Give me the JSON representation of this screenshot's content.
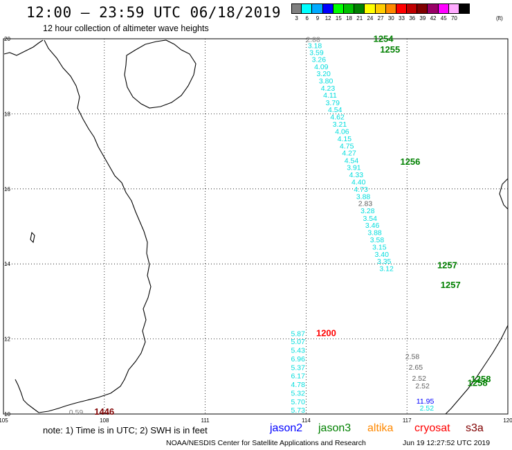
{
  "header": {
    "title": "12:00 – 23:59 UTC 06/18/2019",
    "subtitle": "12 hour collection of altimeter wave heights"
  },
  "legend": {
    "unit": "(ft)",
    "bins": [
      {
        "label": "3",
        "color": "#808080"
      },
      {
        "label": "6",
        "color": "#00ffff"
      },
      {
        "label": "9",
        "color": "#00aaff"
      },
      {
        "label": "12",
        "color": "#0000ff"
      },
      {
        "label": "15",
        "color": "#00ff00"
      },
      {
        "label": "18",
        "color": "#00c000"
      },
      {
        "label": "21",
        "color": "#008000"
      },
      {
        "label": "24",
        "color": "#ffff00"
      },
      {
        "label": "27",
        "color": "#ffcc00"
      },
      {
        "label": "30",
        "color": "#ff8800"
      },
      {
        "label": "33",
        "color": "#ff0000"
      },
      {
        "label": "36",
        "color": "#c00000"
      },
      {
        "label": "39",
        "color": "#800000"
      },
      {
        "label": "42",
        "color": "#990066"
      },
      {
        "label": "45",
        "color": "#ff00ff"
      },
      {
        "label": "70",
        "color": "#ffaaff"
      },
      {
        "label": "",
        "color": "#000000"
      }
    ]
  },
  "map": {
    "lon_labels": [
      "105",
      "108",
      "111",
      "114",
      "117",
      "120"
    ],
    "lat_labels": [
      "20",
      "18",
      "16",
      "14",
      "12",
      "10"
    ],
    "time_labels": [
      {
        "text": "1254",
        "color": "#008000",
        "lon": 116.0,
        "lat": 19.92
      },
      {
        "text": "1255",
        "color": "#008000",
        "lon": 116.2,
        "lat": 19.63
      },
      {
        "text": "1256",
        "color": "#008000",
        "lon": 116.8,
        "lat": 16.64
      },
      {
        "text": "1257",
        "color": "#008000",
        "lon": 117.9,
        "lat": 13.88
      },
      {
        "text": "1257",
        "color": "#008000",
        "lon": 118.0,
        "lat": 13.36
      },
      {
        "text": "1200",
        "color": "#ff0000",
        "lon": 114.3,
        "lat": 12.08
      },
      {
        "text": "1258",
        "color": "#008000",
        "lon": 118.9,
        "lat": 10.85
      },
      {
        "text": "1258",
        "color": "#008000",
        "lon": 118.8,
        "lat": 10.75
      },
      {
        "text": "1446",
        "color": "#800000",
        "lon": 107.7,
        "lat": 9.98
      }
    ],
    "swh_obs": [
      {
        "text": "2.88",
        "color": "#808080",
        "lon": 114.0,
        "lat": 19.92
      },
      {
        "text": "3.18",
        "color": "#00dddd",
        "lon": 114.05,
        "lat": 19.75
      },
      {
        "text": "3.59",
        "color": "#00dddd",
        "lon": 114.1,
        "lat": 19.57
      },
      {
        "text": "3.26",
        "color": "#00dddd",
        "lon": 114.17,
        "lat": 19.38
      },
      {
        "text": "4.09",
        "color": "#00dddd",
        "lon": 114.24,
        "lat": 19.19
      },
      {
        "text": "3.20",
        "color": "#00dddd",
        "lon": 114.31,
        "lat": 19.0
      },
      {
        "text": "3.80",
        "color": "#00dddd",
        "lon": 114.38,
        "lat": 18.81
      },
      {
        "text": "4.23",
        "color": "#00dddd",
        "lon": 114.44,
        "lat": 18.62
      },
      {
        "text": "4.11",
        "color": "#00dddd",
        "lon": 114.51,
        "lat": 18.43
      },
      {
        "text": "3.79",
        "color": "#00dddd",
        "lon": 114.58,
        "lat": 18.23
      },
      {
        "text": "4.54",
        "color": "#00dddd",
        "lon": 114.65,
        "lat": 18.04
      },
      {
        "text": "4.62",
        "color": "#00dddd",
        "lon": 114.72,
        "lat": 17.85
      },
      {
        "text": "3.21",
        "color": "#00dddd",
        "lon": 114.79,
        "lat": 17.66
      },
      {
        "text": "4.06",
        "color": "#00dddd",
        "lon": 114.86,
        "lat": 17.46
      },
      {
        "text": "4.15",
        "color": "#00dddd",
        "lon": 114.93,
        "lat": 17.27
      },
      {
        "text": "4.75",
        "color": "#00dddd",
        "lon": 115.0,
        "lat": 17.08
      },
      {
        "text": "4.27",
        "color": "#00dddd",
        "lon": 115.07,
        "lat": 16.89
      },
      {
        "text": "4.54",
        "color": "#00dddd",
        "lon": 115.14,
        "lat": 16.69
      },
      {
        "text": "3.91",
        "color": "#00dddd",
        "lon": 115.21,
        "lat": 16.5
      },
      {
        "text": "4.33",
        "color": "#00dddd",
        "lon": 115.28,
        "lat": 16.31
      },
      {
        "text": "4.40",
        "color": "#00dddd",
        "lon": 115.35,
        "lat": 16.12
      },
      {
        "text": "4.73",
        "color": "#00dddd",
        "lon": 115.42,
        "lat": 15.92
      },
      {
        "text": "3.88",
        "color": "#00dddd",
        "lon": 115.49,
        "lat": 15.73
      },
      {
        "text": "2.83",
        "color": "#606060",
        "lon": 115.55,
        "lat": 15.54
      },
      {
        "text": "3.28",
        "color": "#00dddd",
        "lon": 115.62,
        "lat": 15.35
      },
      {
        "text": "3.54",
        "color": "#00dddd",
        "lon": 115.69,
        "lat": 15.15
      },
      {
        "text": "3.46",
        "color": "#00dddd",
        "lon": 115.76,
        "lat": 14.96
      },
      {
        "text": "3.88",
        "color": "#00dddd",
        "lon": 115.83,
        "lat": 14.77
      },
      {
        "text": "3.58",
        "color": "#00dddd",
        "lon": 115.9,
        "lat": 14.58
      },
      {
        "text": "3.15",
        "color": "#00dddd",
        "lon": 115.97,
        "lat": 14.38
      },
      {
        "text": "3.40",
        "color": "#00dddd",
        "lon": 116.04,
        "lat": 14.19
      },
      {
        "text": "3.35",
        "color": "#00dddd",
        "lon": 116.11,
        "lat": 14.0
      },
      {
        "text": "3.12",
        "color": "#00dddd",
        "lon": 116.18,
        "lat": 13.81
      },
      {
        "text": "5.87",
        "color": "#00dddd",
        "lon": 113.55,
        "lat": 12.08
      },
      {
        "text": "5.07",
        "color": "#00dddd",
        "lon": 113.55,
        "lat": 11.86
      },
      {
        "text": "5.43",
        "color": "#00dddd",
        "lon": 113.55,
        "lat": 11.63
      },
      {
        "text": "6.96",
        "color": "#00dddd",
        "lon": 113.55,
        "lat": 11.4
      },
      {
        "text": "5.37",
        "color": "#00dddd",
        "lon": 113.55,
        "lat": 11.17
      },
      {
        "text": "6.17",
        "color": "#00dddd",
        "lon": 113.55,
        "lat": 10.95
      },
      {
        "text": "4.78",
        "color": "#00dddd",
        "lon": 113.55,
        "lat": 10.72
      },
      {
        "text": "5.32",
        "color": "#00dddd",
        "lon": 113.55,
        "lat": 10.49
      },
      {
        "text": "5.70",
        "color": "#00dddd",
        "lon": 113.55,
        "lat": 10.26
      },
      {
        "text": "5.73",
        "color": "#00dddd",
        "lon": 113.55,
        "lat": 10.04
      },
      {
        "text": "2.58",
        "color": "#606060",
        "lon": 116.95,
        "lat": 11.47
      },
      {
        "text": "2.65",
        "color": "#606060",
        "lon": 117.05,
        "lat": 11.18
      },
      {
        "text": "2.52",
        "color": "#606060",
        "lon": 117.15,
        "lat": 10.89
      },
      {
        "text": "2.52",
        "color": "#606060",
        "lon": 117.25,
        "lat": 10.68
      },
      {
        "text": "11.95",
        "color": "#0000ff",
        "lon": 117.28,
        "lat": 10.28
      },
      {
        "text": "2.52",
        "color": "#00dddd",
        "lon": 117.38,
        "lat": 10.09
      },
      {
        "text": "0.59",
        "color": "#808080",
        "lon": 106.95,
        "lat": 9.98
      }
    ]
  },
  "footer": {
    "note": "note: 1) Time is in UTC; 2) SWH is in feet",
    "satellites": [
      {
        "name": "jason2",
        "color": "#0000ff"
      },
      {
        "name": "jason3",
        "color": "#008000"
      },
      {
        "name": "altika",
        "color": "#ff8800"
      },
      {
        "name": "cryosat",
        "color": "#ff0000"
      },
      {
        "name": "s3a",
        "color": "#800000"
      }
    ],
    "credit": "NOAA/NESDIS Center for Satellite Applications and Research",
    "timestamp": "Jun 19 12:27:52 UTC 2019"
  }
}
